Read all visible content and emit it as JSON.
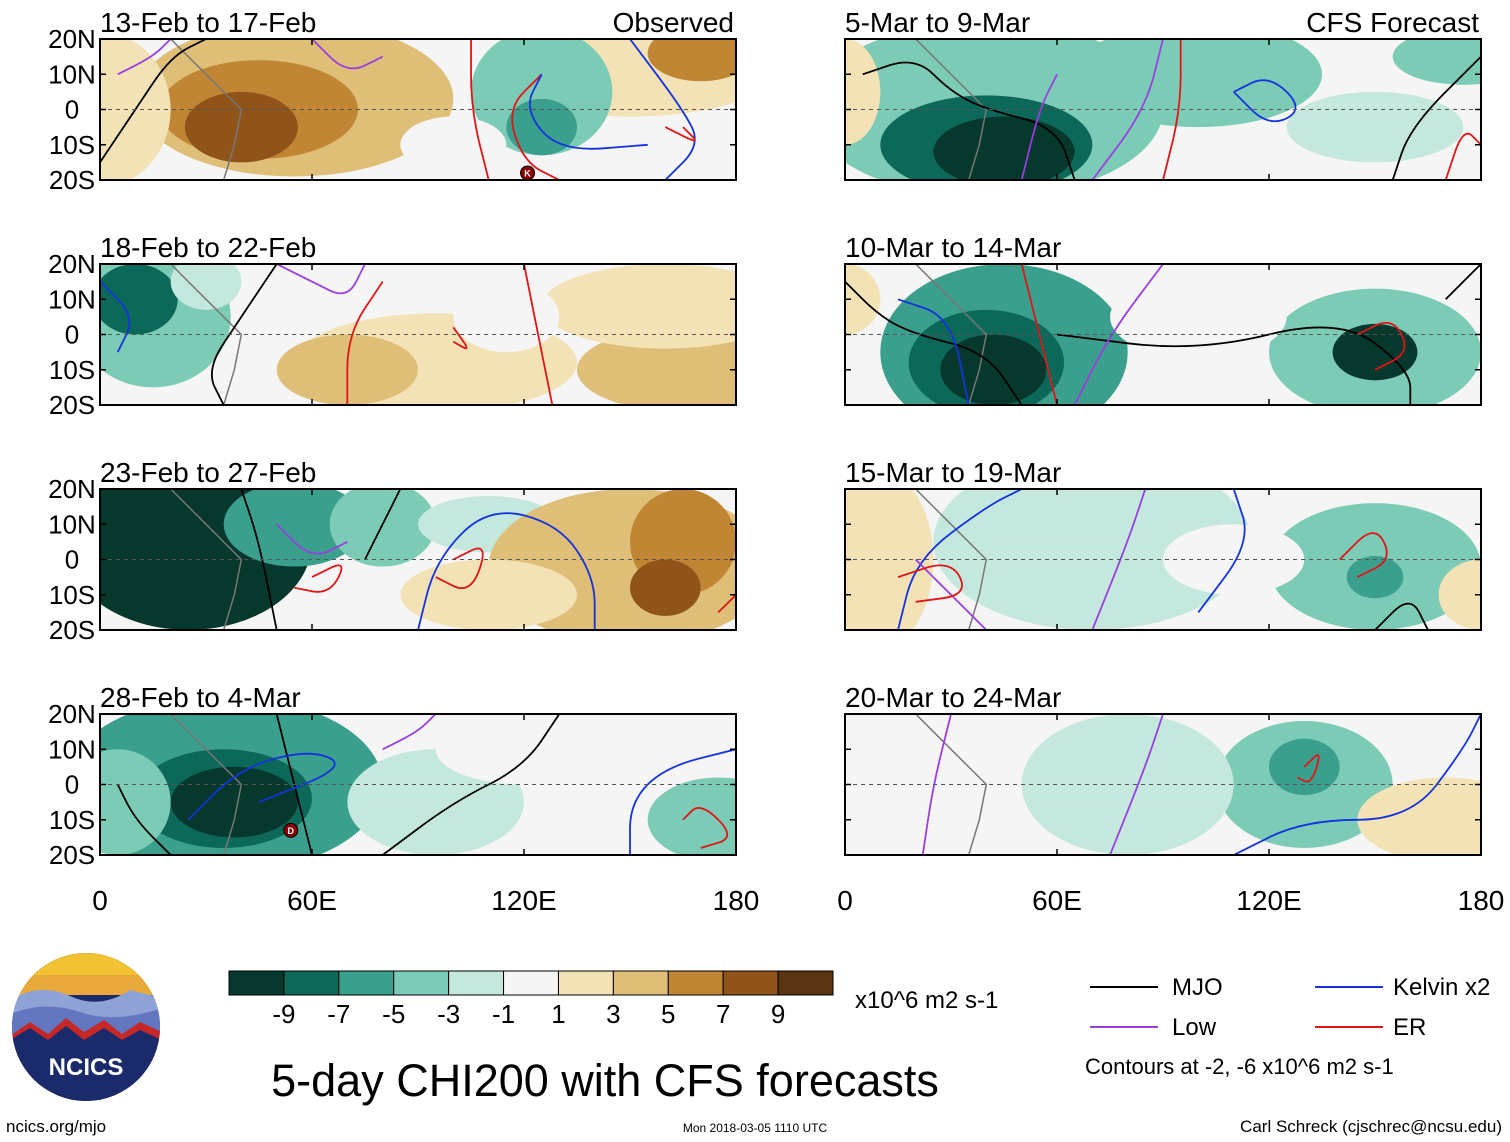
{
  "chart_data": {
    "type": "heatmap",
    "title": "5-day CHI200 with CFS forecasts",
    "variable": "CHI200",
    "units": "x10^6 m2 s-1",
    "columns": [
      {
        "label": "Observed",
        "panels": [
          "13-Feb to 17-Feb",
          "18-Feb to 22-Feb",
          "23-Feb to 27-Feb",
          "28-Feb to 4-Mar"
        ]
      },
      {
        "label": "CFS Forecast",
        "panels": [
          "5-Mar to 9-Mar",
          "10-Mar to 14-Mar",
          "15-Mar to 19-Mar",
          "20-Mar to 24-Mar"
        ]
      }
    ],
    "x_ticks": [
      "0",
      "60E",
      "120E",
      "180"
    ],
    "x_tick_values": [
      0,
      60,
      120,
      180
    ],
    "xlim": [
      0,
      180
    ],
    "y_ticks": [
      "20N",
      "10N",
      "0",
      "10S",
      "20S"
    ],
    "y_tick_values": [
      20,
      10,
      0,
      -10,
      -20
    ],
    "ylim": [
      -20,
      20
    ],
    "colorbar": {
      "labels": [
        "-9",
        "-7",
        "-5",
        "-3",
        "-1",
        "1",
        "3",
        "5",
        "7",
        "9"
      ],
      "boundaries": [
        -9,
        -7,
        -5,
        -3,
        -1,
        1,
        3,
        5,
        7,
        9
      ],
      "colors": [
        "#06382d",
        "#0c6858",
        "#3a9f8c",
        "#7ccbb7",
        "#c4e8dd",
        "#f5f5f5",
        "#f2e2b6",
        "#dfbe78",
        "#c08634",
        "#90541a",
        "#5a3512"
      ]
    },
    "legend": [
      {
        "name": "MJO",
        "color": "#000000"
      },
      {
        "name": "Kelvin x2",
        "color": "#1533dd"
      },
      {
        "name": "Low",
        "color": "#9a3ee0"
      },
      {
        "name": "ER",
        "color": "#e01515"
      }
    ],
    "contour_note": "Contours at -2, -6 x10^6 m2 s-1",
    "storm_markers": [
      {
        "panel": "13-Feb to 17-Feb",
        "letter": "K",
        "lon": 121,
        "lat": -18
      },
      {
        "panel": "28-Feb to 4-Mar",
        "letter": "D",
        "lon": 54,
        "lat": -13
      }
    ]
  },
  "footer": {
    "site": "ncics.org/mjo",
    "timestamp": "Mon 2018-03-05 1110 UTC",
    "author": "Carl Schreck (cjschrec@ncsu.edu)",
    "logo_text": "NCICS"
  }
}
